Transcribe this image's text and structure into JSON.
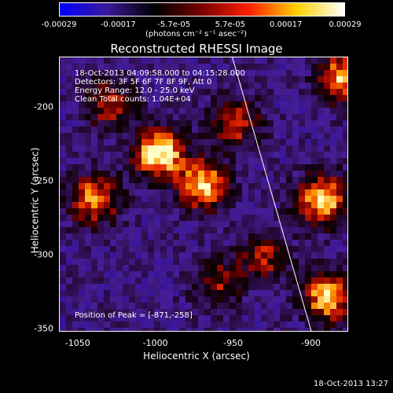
{
  "colorbar": {
    "tick_labels": [
      "-0.00029",
      "-0.00017",
      "-5.7e-05",
      "5.7e-05",
      "0.00017",
      "0.00029"
    ],
    "tick_values": [
      -0.00029,
      -0.00017,
      -5.7e-05,
      5.7e-05,
      0.00017,
      0.00029
    ],
    "range": [
      -0.00029,
      0.00029
    ],
    "units": "(photons cm⁻² s⁻¹ asec⁻²)",
    "colors": [
      "#0000ff",
      "#3a1a9a",
      "#000000",
      "#7a0000",
      "#ff2000",
      "#ffd000",
      "#ffffff"
    ]
  },
  "chart_data": {
    "type": "heatmap",
    "title": "Reconstructed RHESSI Image",
    "xlabel": "Heliocentric X (arcsec)",
    "ylabel": "Heliocentric Y (arcsec)",
    "xlim": [
      -1062,
      -876
    ],
    "ylim": [
      -352,
      -166
    ],
    "xticks": [
      -1050,
      -1000,
      -950,
      -900
    ],
    "yticks": [
      -200,
      -250,
      -300,
      -350
    ],
    "xtick_labels": [
      "-1050",
      "-1000",
      "-950",
      "-900"
    ],
    "ytick_labels": [
      "-200",
      "-250",
      "-300",
      "-350"
    ],
    "limb_line": [
      [
        -951,
        -166
      ],
      [
        -900,
        -352
      ]
    ],
    "peak_position": [
      -871,
      -258
    ],
    "bright_sources": [
      {
        "x": -998,
        "y": -231,
        "level": 1.0
      },
      {
        "x": -970,
        "y": -252,
        "level": 0.85
      },
      {
        "x": -893,
        "y": -262,
        "level": 0.9
      },
      {
        "x": -890,
        "y": -328,
        "level": 0.85
      },
      {
        "x": -880,
        "y": -180,
        "level": 0.8
      },
      {
        "x": -1040,
        "y": -262,
        "level": 0.75
      },
      {
        "x": -1030,
        "y": -197,
        "level": 0.55
      },
      {
        "x": -950,
        "y": -210,
        "level": 0.6
      },
      {
        "x": -930,
        "y": -300,
        "level": 0.5
      },
      {
        "x": -960,
        "y": -318,
        "level": 0.45
      }
    ]
  },
  "info": {
    "time_range": "18-Oct-2013 04:09:58.000 to 04:15:28.000",
    "detectors": "Detectors: 3F 5F 6F 7F 8F 9F, Att 0",
    "energy": "Energy Range: 12.0 - 25.0 keV",
    "clean": "Clean    Total counts: 1.04E+04",
    "peak": "Position of Peak = [-871,-258]"
  },
  "timestamp": "18-Oct-2013 13:27"
}
